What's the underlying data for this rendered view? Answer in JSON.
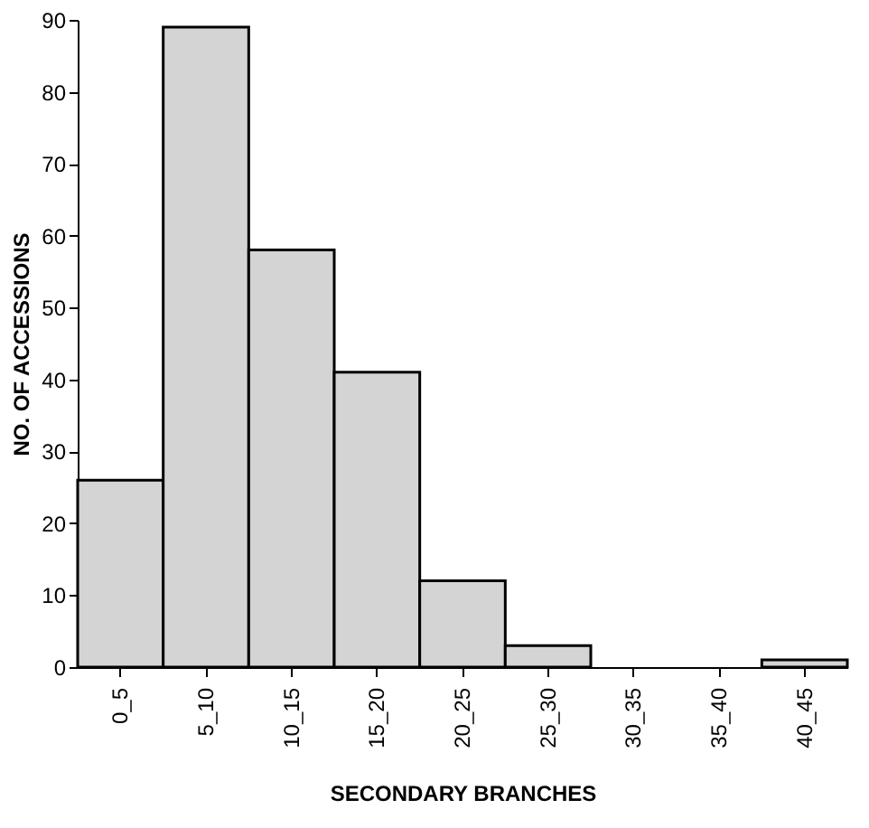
{
  "chart_data": {
    "type": "bar",
    "xlabel": "SECONDARY BRANCHES",
    "ylabel": "NO. OF ACCESSIONS",
    "categories": [
      "0_5",
      "5_10",
      "10_15",
      "15_20",
      "20_25",
      "25_30",
      "30_35",
      "35_40",
      "40_45"
    ],
    "values": [
      26,
      89,
      58,
      41,
      12,
      3,
      0,
      0,
      1
    ],
    "color": "#d4d4d4",
    "ylim": [
      0,
      90
    ],
    "yticks": [
      0,
      10,
      20,
      30,
      40,
      50,
      60,
      70,
      80,
      90
    ],
    "grid": false
  }
}
